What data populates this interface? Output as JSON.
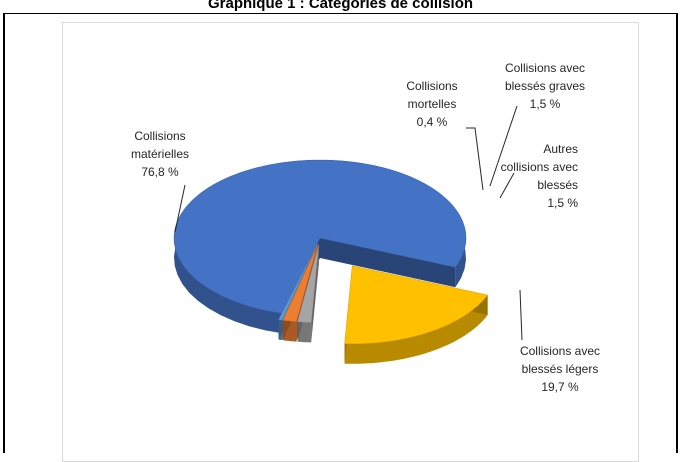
{
  "page": {
    "title": "Graphique 1 : Catégories de collision"
  },
  "chart_data": {
    "type": "pie",
    "title": "",
    "slices": [
      {
        "name": "Collisions matérielles",
        "value": 76.8,
        "label": [
          "Collisions",
          "matérielles",
          "76,8 %"
        ],
        "color": "#4472c4"
      },
      {
        "name": "Collisions mortelles",
        "value": 0.4,
        "label": [
          "Collisions",
          "mortelles",
          "0,4 %"
        ],
        "color": "#5b9bd5"
      },
      {
        "name": "Collisions avec blessés graves",
        "value": 1.5,
        "label": [
          "Collisions avec",
          "blessés graves",
          "1,5 %"
        ],
        "color": "#ed7d31"
      },
      {
        "name": "Autres collisions avec blessés",
        "value": 1.5,
        "label": [
          "Autres",
          "collisions avec",
          "blessés",
          "1,5 %"
        ],
        "color": "#a5a5a5"
      },
      {
        "name": "Collisions avec blessés légers",
        "value": 19.7,
        "label": [
          "Collisions avec",
          "blessés légers",
          "19,7 %"
        ],
        "color": "#ffc000"
      }
    ]
  }
}
